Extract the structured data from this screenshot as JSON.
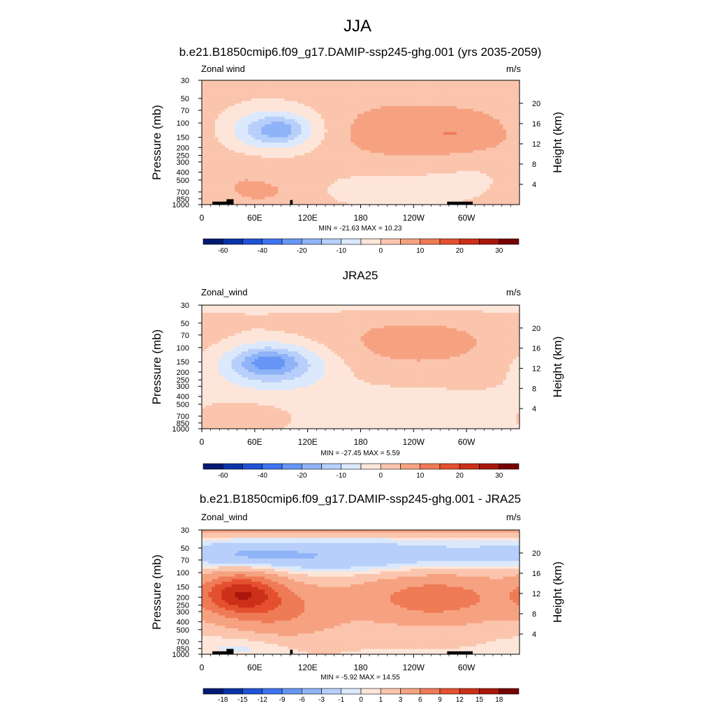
{
  "figure_title": "JJA",
  "chart_data": [
    {
      "type": "heatmap",
      "title": "b.e21.B1850cmip6.f09_g17.DAMIP-ssp245-ghg.001 (yrs 2035-2059)",
      "left_label": "Zonal wind",
      "units": "m/s",
      "ylabel": "Pressure (mb)",
      "ylabel_right": "Height (km)",
      "stats": "MIN = -21.63  MAX =  10.23",
      "x_ticks": [
        "0",
        "60E",
        "120E",
        "180",
        "120W",
        "60W"
      ],
      "p_ticks": [
        "30",
        "50",
        "70",
        "100",
        "150",
        "200",
        "250",
        "300",
        "400",
        "500",
        "700",
        "850",
        "1000"
      ],
      "z_ticks": [
        "20",
        "16",
        "12",
        "8",
        "4"
      ],
      "colorbar_labels": [
        "-60",
        "-40",
        "-20",
        "-10",
        "0",
        "10",
        "20",
        "30"
      ],
      "fields": [
        {
          "lon": 80,
          "p": 125,
          "lw": 40,
          "pw": 0.45,
          "amp": -14
        },
        {
          "lon": 90,
          "p": 120,
          "lw": 20,
          "pw": 0.25,
          "amp": -8
        },
        {
          "lon": 240,
          "p": 130,
          "lw": 80,
          "pw": 0.65,
          "amp": 7
        },
        {
          "lon": 300,
          "p": 140,
          "lw": 35,
          "pw": 0.35,
          "amp": 3
        },
        {
          "lon": 50,
          "p": 500,
          "lw": 45,
          "pw": 0.6,
          "amp": 4
        },
        {
          "lon": 70,
          "p": 700,
          "lw": 18,
          "pw": 0.15,
          "amp": 3
        },
        {
          "lon": 210,
          "p": 600,
          "lw": 80,
          "pw": 0.5,
          "amp": -3
        },
        {
          "lon": 320,
          "p": 400,
          "lw": 45,
          "pw": 0.5,
          "amp": -2
        }
      ],
      "bias": 1.5
    },
    {
      "type": "heatmap",
      "title": "JRA25",
      "left_label": "Zonal_wind",
      "units": "m/s",
      "ylabel": "Pressure (mb)",
      "ylabel_right": "Height (km)",
      "stats": "MIN = -27.45  MAX =   5.59",
      "x_ticks": [
        "0",
        "60E",
        "120E",
        "180",
        "120W",
        "60W"
      ],
      "p_ticks": [
        "30",
        "50",
        "70",
        "100",
        "150",
        "200",
        "250",
        "300",
        "400",
        "500",
        "700",
        "850",
        "1000"
      ],
      "z_ticks": [
        "20",
        "16",
        "12",
        "8",
        "4"
      ],
      "colorbar_labels": [
        "-60",
        "-40",
        "-20",
        "-10",
        "0",
        "10",
        "20",
        "30"
      ],
      "fields": [
        {
          "lon": 80,
          "p": 160,
          "lw": 45,
          "pw": 0.45,
          "amp": -18
        },
        {
          "lon": 75,
          "p": 150,
          "lw": 20,
          "pw": 0.22,
          "amp": -8
        },
        {
          "lon": 240,
          "p": 90,
          "lw": 95,
          "pw": 0.7,
          "amp": 6
        },
        {
          "lon": 20,
          "p": 32,
          "lw": 400,
          "pw": 0.12,
          "amp": -4
        },
        {
          "lon": 200,
          "p": 600,
          "lw": 120,
          "pw": 0.7,
          "amp": -3
        },
        {
          "lon": 60,
          "p": 700,
          "lw": 35,
          "pw": 0.3,
          "amp": 3
        }
      ],
      "bias": 0.6
    },
    {
      "type": "heatmap",
      "title": "b.e21.B1850cmip6.f09_g17.DAMIP-ssp245-ghg.001 - JRA25",
      "left_label": "Zonal_wind",
      "units": "m/s",
      "ylabel": "Pressure (mb)",
      "ylabel_right": "Height (km)",
      "stats": "MIN =  -5.92  MAX =  14.55",
      "x_ticks": [
        "0",
        "60E",
        "120E",
        "180",
        "120W",
        "60W"
      ],
      "p_ticks": [
        "30",
        "50",
        "70",
        "100",
        "150",
        "200",
        "250",
        "300",
        "400",
        "500",
        "700",
        "850",
        "1000"
      ],
      "z_ticks": [
        "20",
        "16",
        "12",
        "8",
        "4"
      ],
      "colorbar_labels": [
        "-18",
        "-15",
        "-12",
        "-9",
        "-6",
        "-3",
        "-1",
        "0",
        "1",
        "3",
        "6",
        "9",
        "12",
        "15",
        "18"
      ],
      "fields": [
        {
          "lon": 45,
          "p": 180,
          "lw": 30,
          "pw": 0.4,
          "amp": 12
        },
        {
          "lon": 90,
          "p": 300,
          "lw": 45,
          "pw": 0.55,
          "amp": 5
        },
        {
          "lon": 270,
          "p": 200,
          "lw": 60,
          "pw": 0.5,
          "amp": 5
        },
        {
          "lon": 240,
          "p": 220,
          "lw": 80,
          "pw": 0.6,
          "amp": 2
        },
        {
          "lon": 180,
          "p": 65,
          "lw": 120,
          "pw": 0.35,
          "amp": -3.5
        },
        {
          "lon": 40,
          "p": 60,
          "lw": 60,
          "pw": 0.25,
          "amp": -2.5
        },
        {
          "lon": 180,
          "p": 31,
          "lw": 600,
          "pw": 0.1,
          "amp": 3.5
        },
        {
          "lon": 50,
          "p": 800,
          "lw": 40,
          "pw": 0.25,
          "amp": -1.5
        }
      ],
      "bias": 0.8
    }
  ]
}
